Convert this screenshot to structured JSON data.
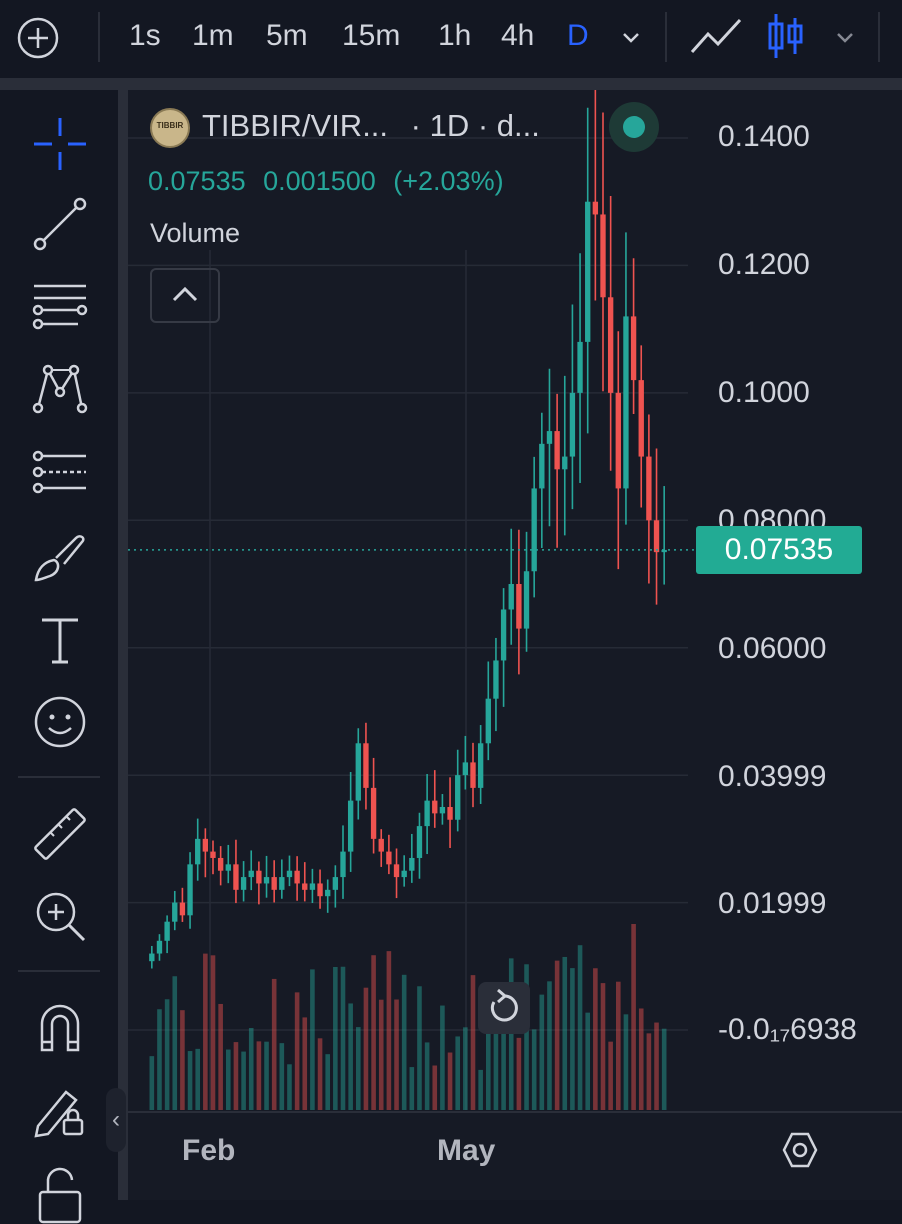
{
  "toolbar": {
    "timeframes": [
      "1s",
      "1m",
      "5m",
      "15m",
      "1h",
      "4h",
      "D"
    ],
    "active_timeframe": "D",
    "icons": [
      "add-symbol-icon",
      "chevron-down-icon",
      "line-chart-icon",
      "candlestick-icon",
      "chevron-down-icon"
    ]
  },
  "left_tools": [
    "crosshair-icon",
    "trend-line-icon",
    "horizontal-lines-icon",
    "pattern-icon",
    "fib-icon",
    "brush-icon",
    "text-icon",
    "emoji-icon",
    "ruler-icon",
    "zoom-in-icon",
    "magnet-icon",
    "lock-drawing-icon",
    "unlock-icon"
  ],
  "legend": {
    "symbol": "TIBBIR/VIR...",
    "details": "· 1D · d...",
    "logo_text": "TIBBIR",
    "close": "0.07535",
    "change": "0.001500",
    "change_pct": "(+2.03%)",
    "volume_label": "Volume"
  },
  "price_axis": {
    "labels": [
      "0.1400",
      "0.1200",
      "0.1000",
      "0.08000",
      "0.06000",
      "0.03999",
      "0.01999",
      "-0.0₁₇6938"
    ],
    "current_price": "0.07535"
  },
  "time_axis": {
    "labels": [
      "Feb",
      "May"
    ]
  },
  "colors": {
    "up": "#26a69a",
    "down": "#ef5350",
    "accent": "#2962ff",
    "badge": "#22ab94"
  },
  "chart_data": {
    "type": "candlestick",
    "symbol": "TIBBIR/VIR...",
    "interval": "1D",
    "ylim": [
      -6.938e-19,
      0.14
    ],
    "yticks": [
      0.14,
      0.12,
      0.1,
      0.08,
      0.06,
      0.03999,
      0.01999
    ],
    "xticks": [
      "Feb",
      "May"
    ],
    "last_price": 0.07535,
    "close_series_approx": [
      0.012,
      0.014,
      0.017,
      0.02,
      0.018,
      0.026,
      0.03,
      0.028,
      0.027,
      0.025,
      0.026,
      0.022,
      0.024,
      0.025,
      0.023,
      0.024,
      0.022,
      0.024,
      0.025,
      0.023,
      0.022,
      0.023,
      0.021,
      0.022,
      0.024,
      0.028,
      0.036,
      0.045,
      0.038,
      0.03,
      0.028,
      0.026,
      0.024,
      0.025,
      0.027,
      0.032,
      0.036,
      0.034,
      0.035,
      0.033,
      0.04,
      0.042,
      0.038,
      0.045,
      0.052,
      0.058,
      0.066,
      0.07,
      0.063,
      0.072,
      0.085,
      0.092,
      0.094,
      0.088,
      0.09,
      0.1,
      0.108,
      0.13,
      0.128,
      0.115,
      0.1,
      0.085,
      0.112,
      0.102,
      0.09,
      0.08,
      0.075,
      0.07535
    ]
  }
}
